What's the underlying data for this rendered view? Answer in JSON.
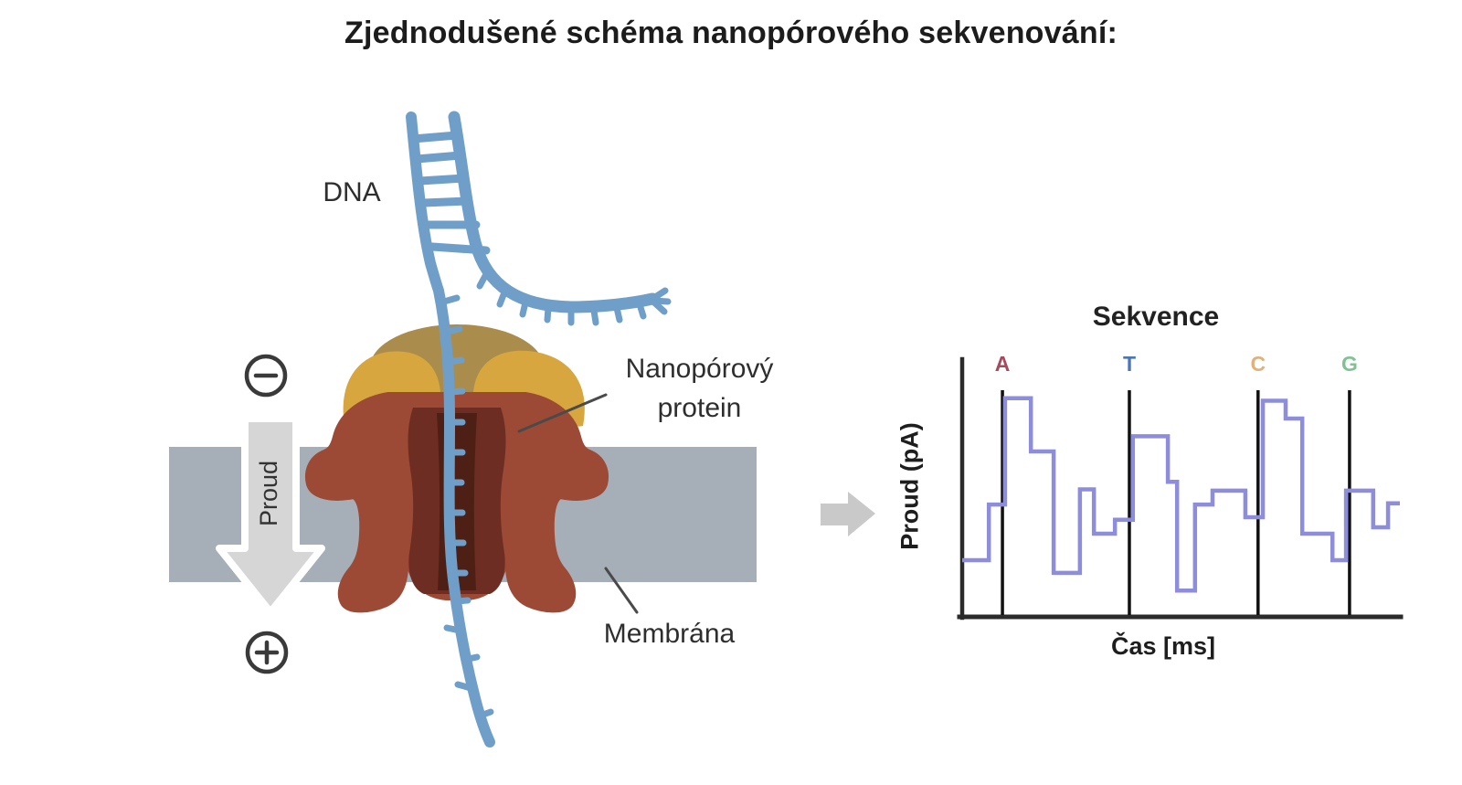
{
  "title": "Zjednodušené schéma nanopórového sekvenování:",
  "diagram": {
    "dna_label": "DNA",
    "protein_label_line1": "Nanopórový",
    "protein_label_line2": "protein",
    "membrane_label": "Membrána",
    "current_label": "Proud",
    "electrode_minus": "−",
    "electrode_plus": "+",
    "colors": {
      "dna": "#6f9fc8",
      "membrane": "#a6afb8",
      "protein_outer": "#9c4a36",
      "protein_inner": "#6e2d22",
      "protein_core": "#4e2015",
      "cap_gold": "#d7a63f",
      "cap_olive": "#aa8d4c",
      "current_arrow": "#d6d6d6",
      "flow_arrow": "#c9c9c9",
      "pointer_line": "#4a4a4a",
      "symbol": "#3a3a3a",
      "label_text": "#2e2e2e"
    }
  },
  "chart_data": {
    "type": "line",
    "subtype": "step",
    "title": "Sekvence",
    "xlabel": "Čas [ms]",
    "ylabel": "Proud (pA)",
    "x_range": [
      0,
      100
    ],
    "y_range": [
      0,
      100
    ],
    "grid": false,
    "legend": "none",
    "line_color": "#8d8ddb",
    "axis_color": "#2b2b2b",
    "marker_line_color": "#111111",
    "markers": [
      {
        "base": "A",
        "t": 9.2,
        "color": "#a84a5e"
      },
      {
        "base": "T",
        "t": 38.2,
        "color": "#4a76b4"
      },
      {
        "base": "C",
        "t": 67.6,
        "color": "#e2b078"
      },
      {
        "base": "G",
        "t": 88.5,
        "color": "#7fc395"
      }
    ],
    "steps": [
      {
        "t": 0,
        "v": 22
      },
      {
        "t": 6.1,
        "v": 44
      },
      {
        "t": 9.8,
        "v": 86
      },
      {
        "t": 15.7,
        "v": 65
      },
      {
        "t": 20.9,
        "v": 17
      },
      {
        "t": 26.9,
        "v": 50
      },
      {
        "t": 30.1,
        "v": 32.5
      },
      {
        "t": 34.9,
        "v": 38
      },
      {
        "t": 39,
        "v": 71
      },
      {
        "t": 47,
        "v": 53
      },
      {
        "t": 49.1,
        "v": 10
      },
      {
        "t": 53.2,
        "v": 44
      },
      {
        "t": 57.2,
        "v": 49.5
      },
      {
        "t": 64.7,
        "v": 39
      },
      {
        "t": 68.7,
        "v": 85
      },
      {
        "t": 73.9,
        "v": 78
      },
      {
        "t": 77.7,
        "v": 32.5
      },
      {
        "t": 84.6,
        "v": 22
      },
      {
        "t": 87.7,
        "v": 49.5
      },
      {
        "t": 93.9,
        "v": 35
      },
      {
        "t": 97.3,
        "v": 44.5
      }
    ],
    "t_end": 100
  }
}
